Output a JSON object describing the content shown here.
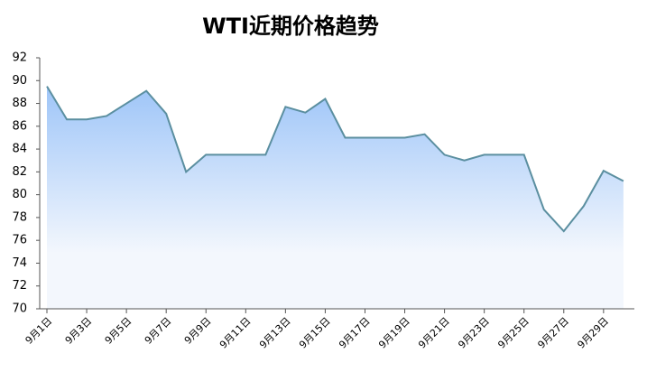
{
  "chart_data": {
    "type": "area",
    "title": "WTI近期价格趋势",
    "categories": [
      "9月1日",
      null,
      "9月3日",
      null,
      "9月5日",
      null,
      "9月7日",
      null,
      "9月9日",
      null,
      "9月11日",
      null,
      "9月13日",
      null,
      "9月15日",
      null,
      "9月17日",
      null,
      "9月19日",
      null,
      "9月21日",
      null,
      "9月23日",
      null,
      "9月25日",
      null,
      "9月27日",
      null,
      "9月29日",
      null
    ],
    "values": [
      89.5,
      86.6,
      86.6,
      86.9,
      88.0,
      89.1,
      87.1,
      82.0,
      83.5,
      83.5,
      83.5,
      83.5,
      87.7,
      87.2,
      88.4,
      85.0,
      85.0,
      85.0,
      85.0,
      85.3,
      83.5,
      83.0,
      83.5,
      83.5,
      83.5,
      78.7,
      76.8,
      79.0,
      82.1,
      81.2
    ],
    "color": "#5b8fa0",
    "fill_color": "#9ec5f8",
    "ylim": [
      70,
      92
    ],
    "yticks": [
      70,
      72,
      74,
      76,
      78,
      80,
      82,
      84,
      86,
      88,
      90,
      92
    ]
  }
}
